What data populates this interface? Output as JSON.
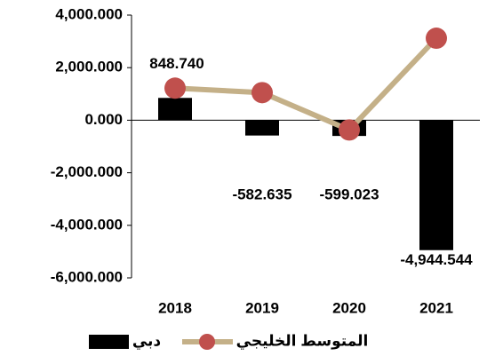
{
  "chart_data": {
    "type": "bar_line",
    "categories": [
      "2018",
      "2019",
      "2020",
      "2021"
    ],
    "series": [
      {
        "name": "دبي",
        "type": "bar",
        "color": "#000000",
        "values": [
          848.74,
          -582.635,
          -599.023,
          -4944.544
        ],
        "value_labels": [
          "848.740",
          "-582.635",
          "-599.023",
          "-4,944.544"
        ]
      },
      {
        "name": "المتوسط الخليجي",
        "type": "line",
        "color": "#c4b088",
        "marker_color": "#c0504d",
        "values": [
          1220,
          1050,
          -370,
          3120
        ]
      }
    ],
    "ylim": [
      -6000,
      4000
    ],
    "yticks": [
      {
        "value": -6000,
        "label": "-6,000.000"
      },
      {
        "value": -4000,
        "label": "-4,000.000"
      },
      {
        "value": -2000,
        "label": "-2,000.000"
      },
      {
        "value": 0,
        "label": "0.000"
      },
      {
        "value": 2000,
        "label": "2,000.000"
      },
      {
        "value": 4000,
        "label": "4,000.000"
      }
    ],
    "legend": "bottom"
  }
}
